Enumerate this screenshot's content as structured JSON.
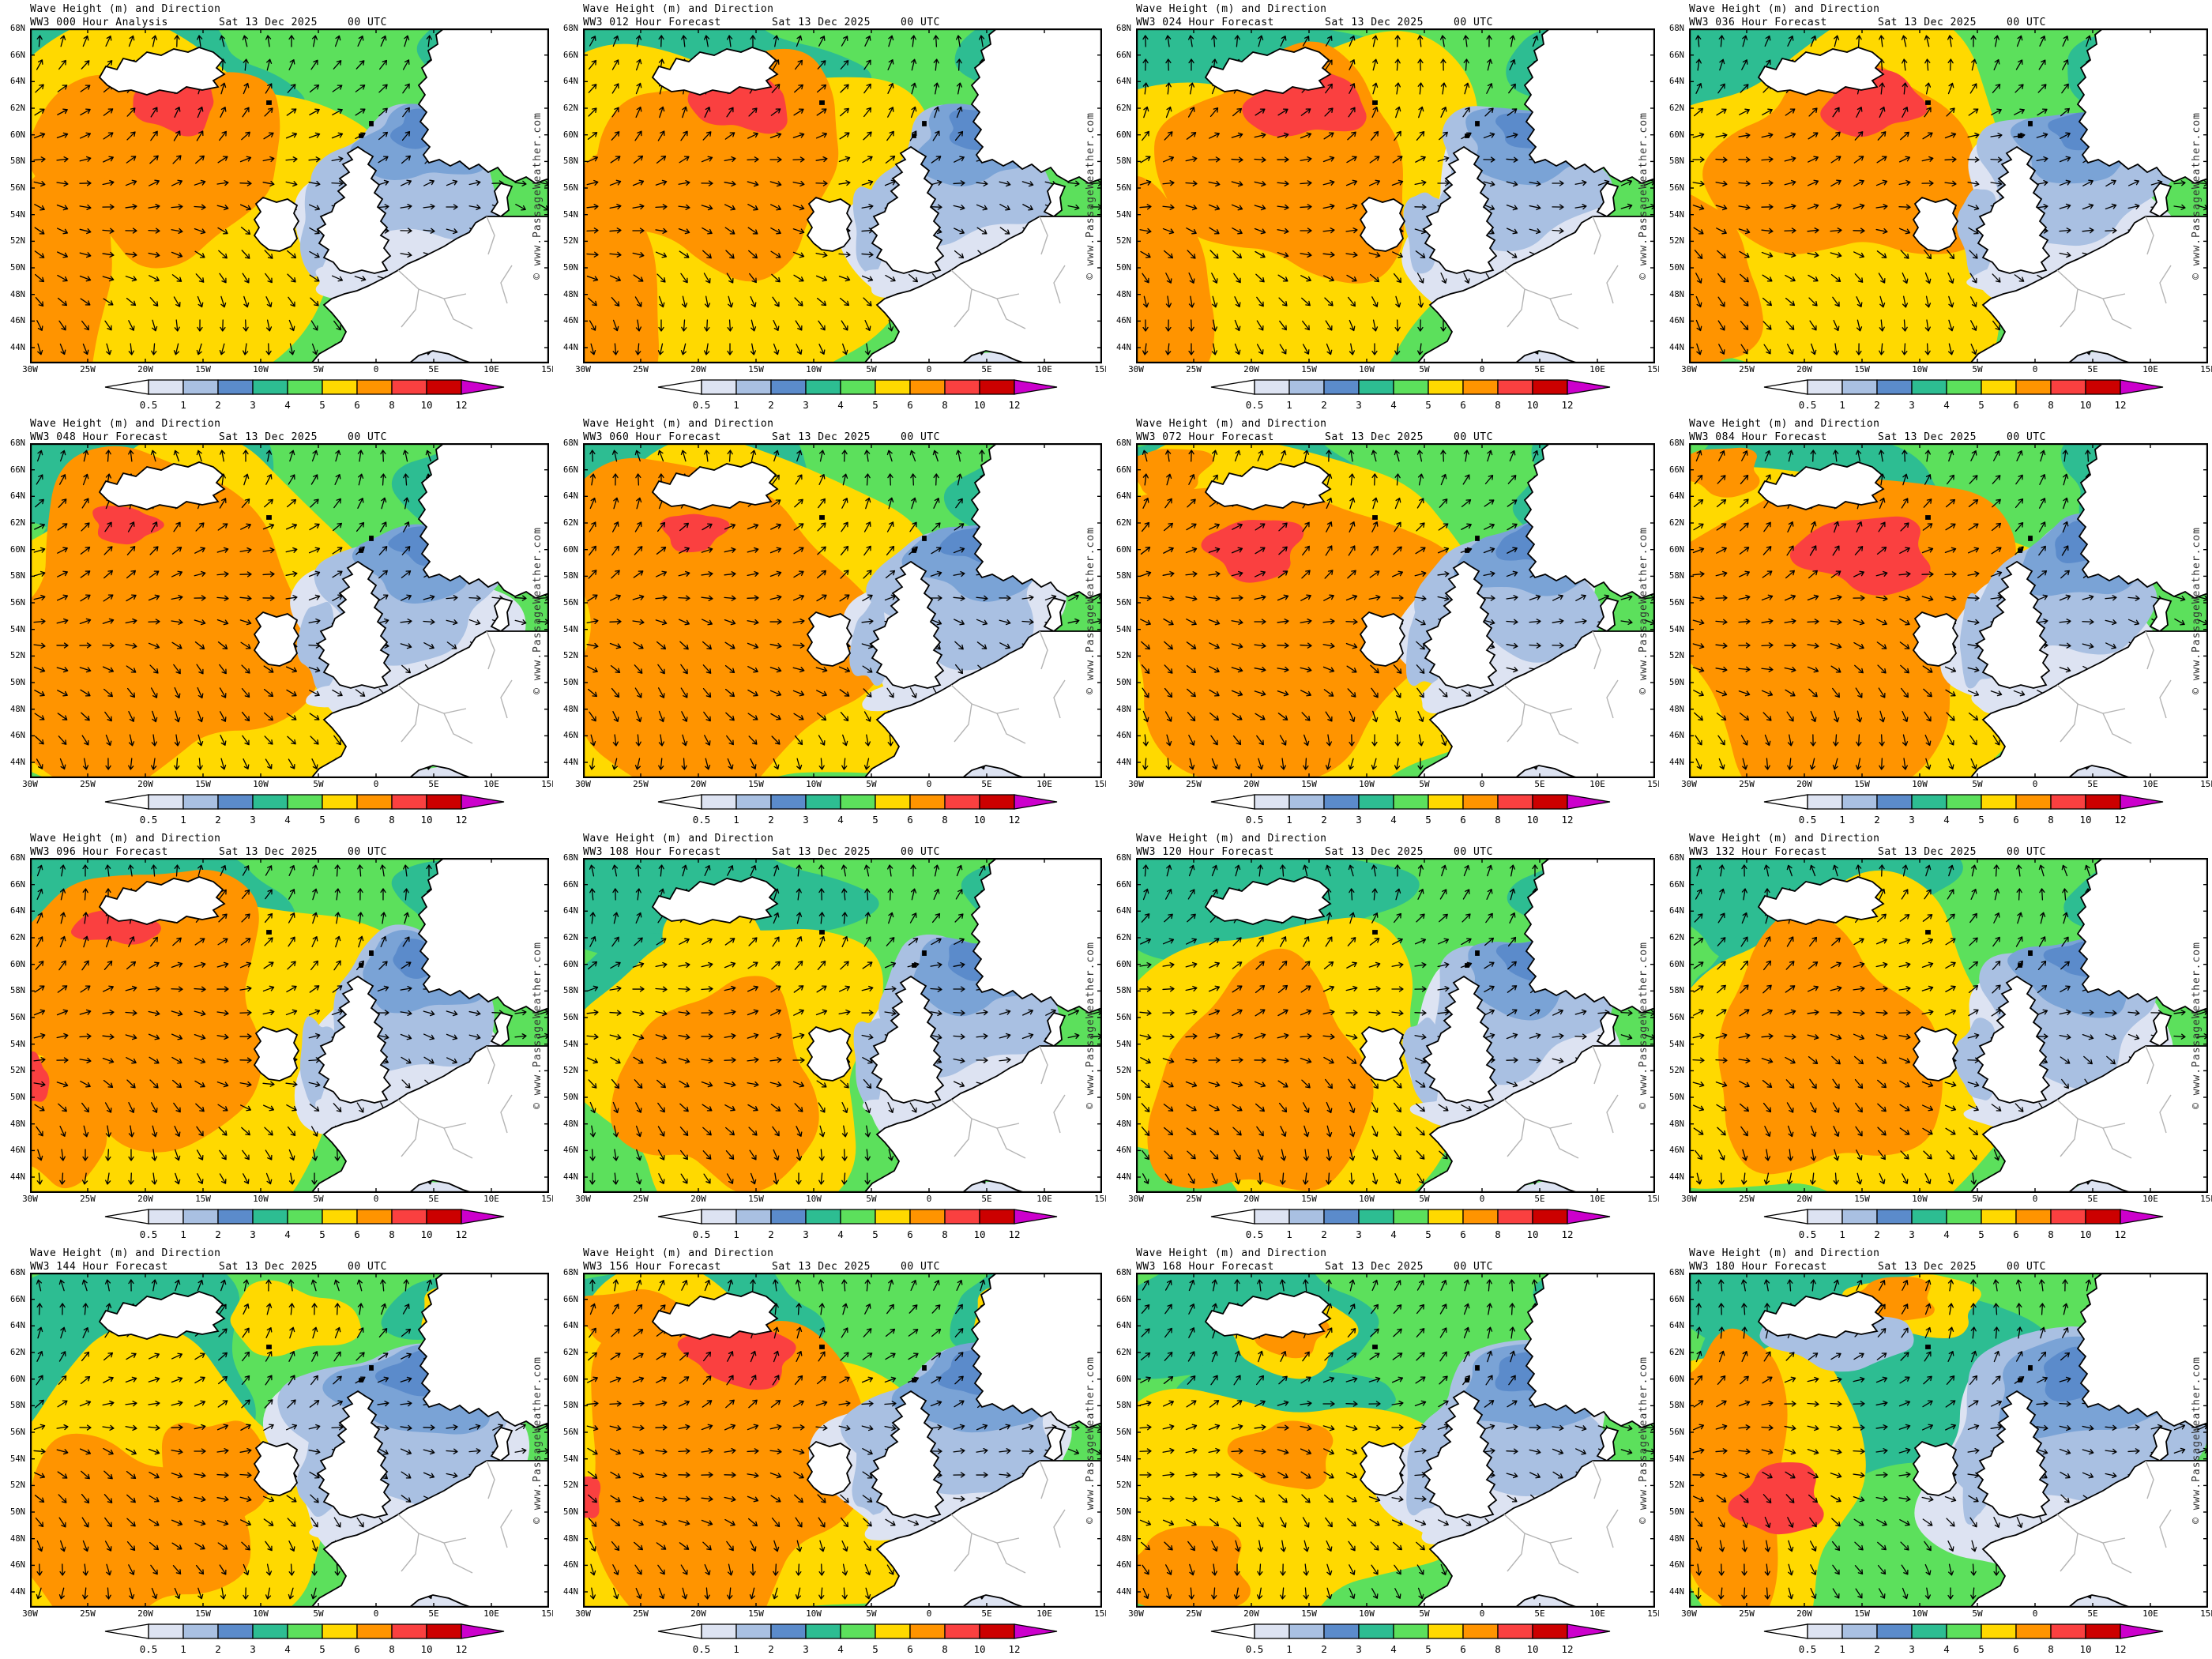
{
  "common": {
    "title": "Wave Height (m) and Direction",
    "date": "Sat 13 Dec 2025",
    "time": "00 UTC",
    "watermark": "© www.PassageWeather.com"
  },
  "panels": [
    {
      "label": "WW3 000 Hour Analysis"
    },
    {
      "label": "WW3 012 Hour Forecast"
    },
    {
      "label": "WW3 024 Hour Forecast"
    },
    {
      "label": "WW3 036 Hour Forecast"
    },
    {
      "label": "WW3 048 Hour Forecast"
    },
    {
      "label": "WW3 060 Hour Forecast"
    },
    {
      "label": "WW3 072 Hour Forecast"
    },
    {
      "label": "WW3 084 Hour Forecast"
    },
    {
      "label": "WW3 096 Hour Forecast"
    },
    {
      "label": "WW3 108 Hour Forecast"
    },
    {
      "label": "WW3 120 Hour Forecast"
    },
    {
      "label": "WW3 132 Hour Forecast"
    },
    {
      "label": "WW3 144 Hour Forecast"
    },
    {
      "label": "WW3 156 Hour Forecast"
    },
    {
      "label": "WW3 168 Hour Forecast"
    },
    {
      "label": "WW3 180 Hour Forecast"
    }
  ],
  "axes": {
    "lat": [
      "68N",
      "66N",
      "64N",
      "62N",
      "60N",
      "58N",
      "56N",
      "54N",
      "52N",
      "50N",
      "48N",
      "46N",
      "44N"
    ],
    "lon": [
      "30W",
      "25W",
      "20W",
      "15W",
      "10W",
      "5W",
      "0",
      "5E",
      "10E",
      "15E"
    ]
  },
  "colorbar": {
    "labels": [
      "0.5",
      "1",
      "2",
      "3",
      "4",
      "5",
      "6",
      "8",
      "10",
      "12"
    ],
    "segments": [
      "#dde3f2",
      "#a9c0e2",
      "#5b8bcb",
      "#2dbd92",
      "#5ce05c",
      "#ffd900",
      "#ff9400",
      "#fa4040",
      "#cc0000"
    ],
    "left_arrow": "#ffffff",
    "right_arrow": "#cc00cc"
  },
  "map_colors": {
    "ocean_green": "#5ce05c",
    "teal": "#2dbd92",
    "yellow": "#ffd900",
    "orange": "#ff9400",
    "red": "#fa4040",
    "dark_red": "#cc0000",
    "blue_2_3": "#5b8bcb",
    "north_sea_blue": "#7aa3d6",
    "blue_1_2": "#a9c0e2",
    "blue_05_1": "#dde3f2",
    "land": "#ffffff",
    "coastline": "#000000",
    "border_gray": "#b4b4b4",
    "arrow": "#000000"
  }
}
